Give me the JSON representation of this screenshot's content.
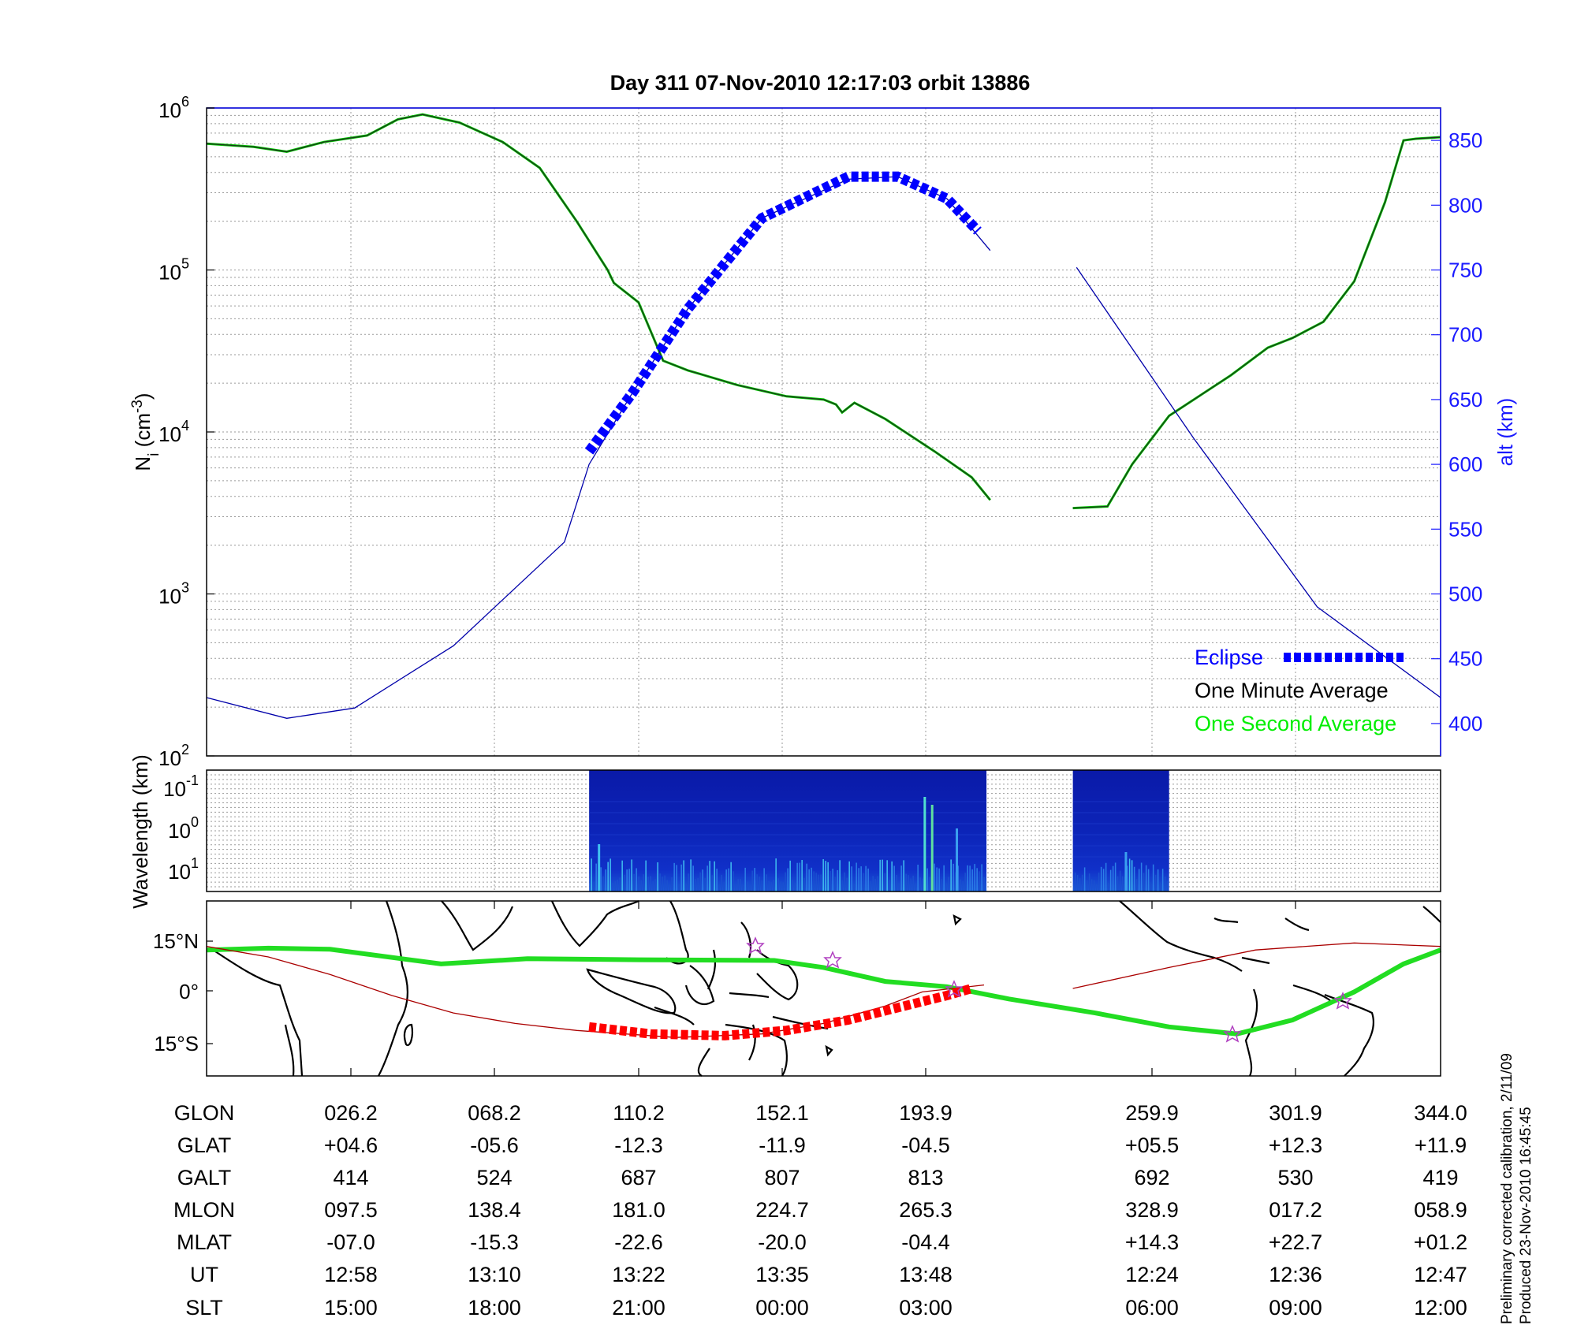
{
  "chart_data": [
    {
      "type": "line",
      "title": "Day 311  07-Nov-2010 12:17:03   orbit 13886",
      "ylabel": "Ni (cm-3)",
      "ylabel_parts": {
        "main": "N",
        "sub": "i",
        "unit_open": " (cm",
        "sup": "-3",
        "unit_close": ")"
      },
      "y_scale": "log",
      "ylim": [
        100,
        1000000
      ],
      "y_ticks": [
        {
          "base": "10",
          "exp": "2"
        },
        {
          "base": "10",
          "exp": "3"
        },
        {
          "base": "10",
          "exp": "4"
        },
        {
          "base": "10",
          "exp": "5"
        },
        {
          "base": "10",
          "exp": "6"
        }
      ],
      "y2label": "alt (km)",
      "y2lim": [
        375,
        875
      ],
      "y2_ticks": [
        "400",
        "450",
        "500",
        "550",
        "600",
        "650",
        "700",
        "750",
        "800",
        "850"
      ],
      "grid": true,
      "legend_placement": "bottom-right",
      "legend": [
        {
          "label": "Eclipse",
          "color": "#0000ff",
          "style": "dashed-thick"
        },
        {
          "label": "One Minute Average",
          "color": "#000000"
        },
        {
          "label": "One Second Average",
          "color": "#00ee00"
        }
      ],
      "series": [
        {
          "name": "One Minute Average",
          "color": "#000000",
          "segments": [
            [
              [
                0,
                5.78
              ],
              [
                0.038,
                5.76
              ],
              [
                0.065,
                5.73
              ],
              [
                0.095,
                5.79
              ],
              [
                0.13,
                5.83
              ],
              [
                0.155,
                5.93
              ],
              [
                0.175,
                5.96
              ],
              [
                0.205,
                5.91
              ],
              [
                0.24,
                5.79
              ],
              [
                0.27,
                5.63
              ],
              [
                0.3,
                5.3
              ],
              [
                0.325,
                5.0
              ],
              [
                0.33,
                4.92
              ],
              [
                0.35,
                4.8
              ],
              [
                0.37,
                4.44
              ],
              [
                0.39,
                4.38
              ],
              [
                0.43,
                4.29
              ],
              [
                0.47,
                4.22
              ],
              [
                0.5,
                4.2
              ],
              [
                0.51,
                4.17
              ],
              [
                0.515,
                4.12
              ],
              [
                0.525,
                4.18
              ],
              [
                0.55,
                4.08
              ],
              [
                0.59,
                3.88
              ],
              [
                0.62,
                3.72
              ],
              [
                0.635,
                3.58
              ]
            ],
            [
              [
                0.702,
                3.53
              ],
              [
                0.73,
                3.54
              ],
              [
                0.75,
                3.8
              ],
              [
                0.78,
                4.1
              ],
              [
                0.83,
                4.35
              ],
              [
                0.86,
                4.52
              ],
              [
                0.88,
                4.58
              ],
              [
                0.905,
                4.68
              ],
              [
                0.93,
                4.93
              ],
              [
                0.955,
                5.42
              ],
              [
                0.97,
                5.8
              ],
              [
                0.98,
                5.81
              ],
              [
                1.0,
                5.82
              ]
            ]
          ]
        },
        {
          "name": "alt (km)",
          "color": "#0000aa",
          "axis": "y2",
          "segments": [
            [
              [
                0,
                420
              ],
              [
                0.065,
                404
              ],
              [
                0.12,
                412
              ],
              [
                0.2,
                460
              ],
              [
                0.29,
                540
              ],
              [
                0.31,
                600
              ],
              [
                0.345,
                655
              ],
              [
                0.39,
                720
              ],
              [
                0.45,
                790
              ],
              [
                0.52,
                820
              ],
              [
                0.56,
                822
              ],
              [
                0.6,
                805
              ],
              [
                0.635,
                765
              ]
            ],
            [
              [
                0.705,
                752
              ],
              [
                0.8,
                620
              ],
              [
                0.9,
                490
              ],
              [
                1.0,
                420
              ]
            ]
          ]
        },
        {
          "name": "Eclipse",
          "color": "#0000ff",
          "axis": "y2",
          "style": "dashed-thick",
          "segments": [
            [
              [
                0.31,
                610
              ],
              [
                0.345,
                655
              ],
              [
                0.39,
                720
              ],
              [
                0.45,
                790
              ],
              [
                0.52,
                822
              ],
              [
                0.56,
                822
              ],
              [
                0.6,
                805
              ],
              [
                0.625,
                780
              ]
            ]
          ]
        }
      ]
    },
    {
      "type": "heatmap",
      "ylabel": "Wavelength (km)",
      "y_ticks": [
        {
          "base": "10",
          "exp": "-1"
        },
        {
          "base": "10",
          "exp": "0"
        },
        {
          "base": "10",
          "exp": "1"
        }
      ],
      "blocks": [
        [
          0.31,
          0.632
        ],
        [
          0.702,
          0.78
        ]
      ]
    },
    {
      "type": "line",
      "y_ticks": [
        "15°N",
        "0°",
        "15°S"
      ],
      "ylim": [
        -25,
        25
      ],
      "series": [
        {
          "name": "ground track",
          "color": "#22dd22",
          "points": [
            [
              0,
              11
            ],
            [
              0.05,
              11.5
            ],
            [
              0.1,
              11.2
            ],
            [
              0.19,
              7
            ],
            [
              0.26,
              8.5
            ],
            [
              0.35,
              8.2
            ],
            [
              0.46,
              8
            ],
            [
              0.5,
              6
            ],
            [
              0.55,
              2
            ],
            [
              0.6,
              0.5
            ],
            [
              0.65,
              -3
            ],
            [
              0.72,
              -7
            ],
            [
              0.78,
              -11
            ],
            [
              0.835,
              -13
            ],
            [
              0.88,
              -9
            ],
            [
              0.93,
              -1
            ],
            [
              0.97,
              7
            ],
            [
              1.0,
              11
            ]
          ]
        },
        {
          "name": "magnetic equator",
          "color": "#aa0000",
          "points": [
            [
              0,
              12
            ],
            [
              0.05,
              9
            ],
            [
              0.1,
              4
            ],
            [
              0.15,
              -2
            ],
            [
              0.2,
              -7
            ],
            [
              0.25,
              -10
            ],
            [
              0.3,
              -12
            ],
            [
              0.38,
              -14
            ],
            [
              0.45,
              -13
            ],
            [
              0.5,
              -10
            ],
            [
              0.55,
              -5
            ],
            [
              0.58,
              -1
            ],
            [
              0.63,
              1
            ]
          ]
        },
        {
          "name": "magnetic equator 2",
          "color": "#aa0000",
          "points": [
            [
              0.702,
              0
            ],
            [
              0.78,
              6
            ],
            [
              0.85,
              11
            ],
            [
              0.93,
              13
            ],
            [
              1.0,
              12
            ]
          ]
        },
        {
          "name": "eclipse track",
          "color": "#ff0000",
          "style": "dashed-thick",
          "points": [
            [
              0.31,
              -11
            ],
            [
              0.36,
              -13
            ],
            [
              0.42,
              -13.5
            ],
            [
              0.47,
              -12
            ],
            [
              0.52,
              -9
            ],
            [
              0.56,
              -5.5
            ],
            [
              0.6,
              -2
            ],
            [
              0.62,
              0
            ]
          ]
        }
      ]
    }
  ],
  "table": {
    "row_labels": [
      "GLON",
      "GLAT",
      "GALT",
      "MLON",
      "MLAT",
      "UT",
      "SLT"
    ],
    "columns": [
      [
        "026.2",
        "+04.6",
        "414",
        "097.5",
        "-07.0",
        "12:58",
        "15:00"
      ],
      [
        "068.2",
        "-05.6",
        "524",
        "138.4",
        "-15.3",
        "13:10",
        "18:00"
      ],
      [
        "110.2",
        "-12.3",
        "687",
        "181.0",
        "-22.6",
        "13:22",
        "21:00"
      ],
      [
        "152.1",
        "-11.9",
        "807",
        "224.7",
        "-20.0",
        "13:35",
        "00:00"
      ],
      [
        "193.9",
        "-04.5",
        "813",
        "265.3",
        "-04.4",
        "13:48",
        "03:00"
      ],
      [
        "259.9",
        "+05.5",
        "692",
        "328.9",
        "+14.3",
        "12:24",
        "06:00"
      ],
      [
        "301.9",
        "+12.3",
        "530",
        "017.2",
        "+22.7",
        "12:36",
        "09:00"
      ],
      [
        "344.0",
        "+11.9",
        "419",
        "058.9",
        "+01.2",
        "12:47",
        "12:00"
      ]
    ]
  },
  "footer": {
    "line1": "Preliminary corrected calibration, 2/11/09",
    "line2": "Produced 23-Nov-2010 16:45:45"
  }
}
